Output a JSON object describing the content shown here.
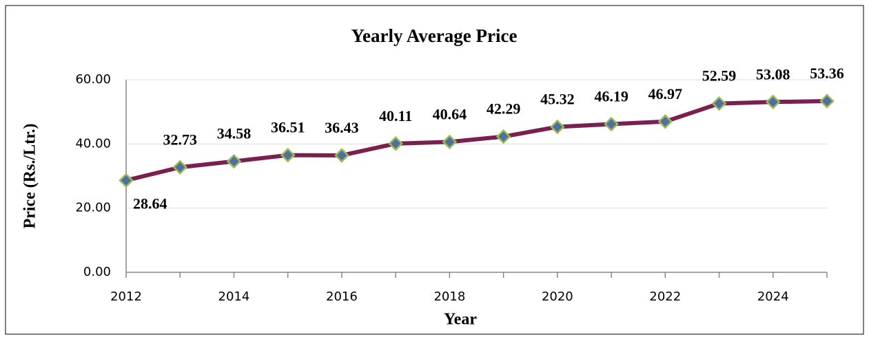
{
  "chart_data": {
    "type": "line",
    "title": "Yearly Average Price",
    "x_label": "Year",
    "y_label": "Price (Rs./Ltr.)",
    "x": [
      2012,
      2013,
      2014,
      2015,
      2016,
      2017,
      2018,
      2019,
      2020,
      2021,
      2022,
      2023,
      2024,
      2025
    ],
    "series": [
      {
        "name": "Yearly Average Price",
        "color": "#7b1f4f",
        "values": [
          28.64,
          32.73,
          34.58,
          36.51,
          36.43,
          40.11,
          40.64,
          42.29,
          45.32,
          46.19,
          46.97,
          52.59,
          53.08,
          53.36
        ]
      }
    ],
    "xlim": [
      2012,
      2025
    ],
    "xticks": [
      2012,
      2014,
      2016,
      2018,
      2020,
      2022,
      2024
    ],
    "ylim": [
      0,
      60
    ],
    "yticks": [
      {
        "value": 0,
        "label": "0.00"
      },
      {
        "value": 20,
        "label": "20.00"
      },
      {
        "value": 40,
        "label": "40.00"
      },
      {
        "value": 60,
        "label": "60.00"
      }
    ],
    "grid": true,
    "marker_color": "#9bbb59"
  }
}
